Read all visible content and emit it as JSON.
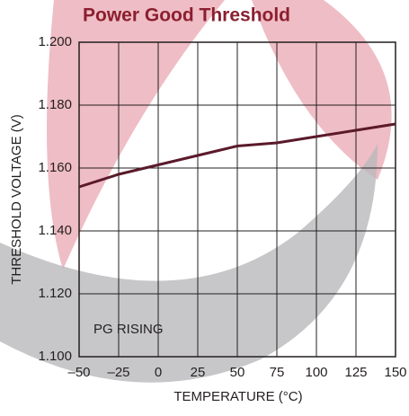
{
  "chart_data": {
    "type": "line",
    "title": "Power Good Threshold",
    "x_label": "TEMPERATURE (°C)",
    "y_label": "THRESHOLD VOLTAGE (V)",
    "annotation": "PG RISING",
    "x": [
      -50,
      -25,
      0,
      25,
      50,
      75,
      100,
      125,
      150
    ],
    "values": [
      1.154,
      1.158,
      1.161,
      1.164,
      1.167,
      1.168,
      1.17,
      1.172,
      1.174
    ],
    "color": "#5a1a2a",
    "xlim": [
      -50,
      150
    ],
    "ylim": [
      1.1,
      1.2
    ],
    "xticks": [
      {
        "value": -50,
        "label": "–50"
      },
      {
        "value": -25,
        "label": "–25"
      },
      0,
      25,
      50,
      75,
      100,
      125,
      150
    ],
    "yticks": [
      {
        "value": 1.1,
        "label": "1.100"
      },
      {
        "value": 1.12,
        "label": "1.120"
      },
      {
        "value": 1.14,
        "label": "1.140"
      },
      {
        "value": 1.16,
        "label": "1.160"
      },
      {
        "value": 1.18,
        "label": "1.180"
      },
      {
        "value": 1.2,
        "label": "1.200"
      }
    ],
    "grid": true
  }
}
